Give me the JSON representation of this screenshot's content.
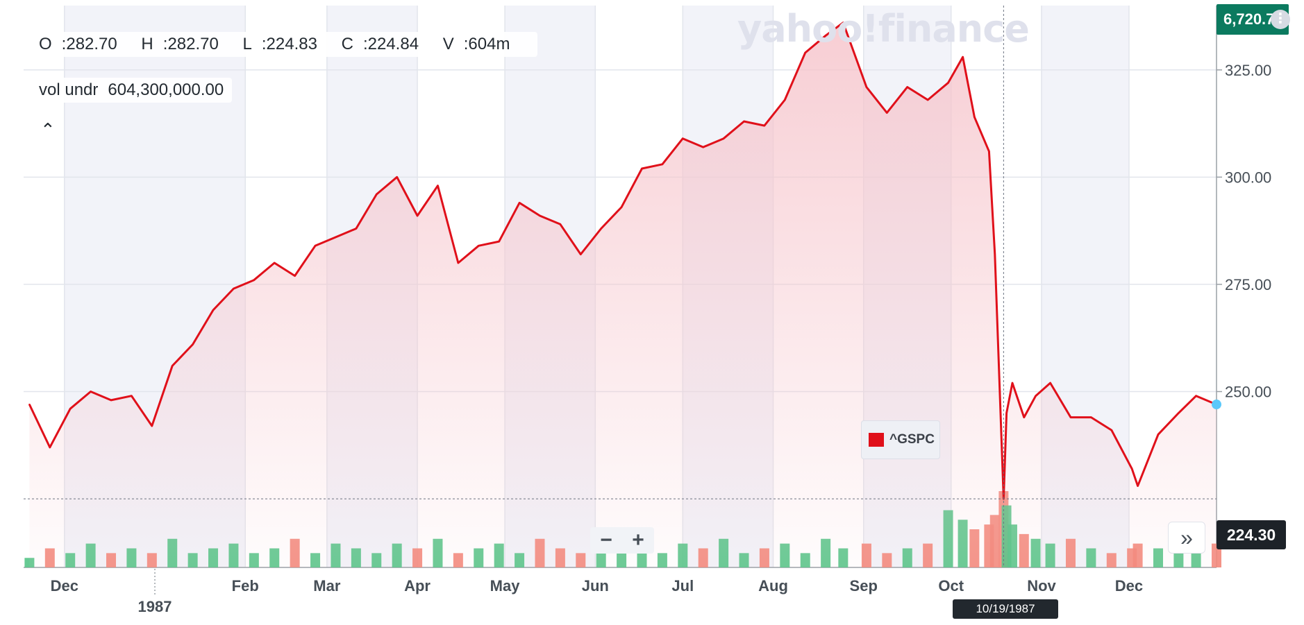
{
  "header": {
    "ohlc": [
      {
        "key": "O",
        "value": "282.70"
      },
      {
        "key": "H",
        "value": "282.70"
      },
      {
        "key": "L",
        "value": "224.83"
      },
      {
        "key": "C",
        "value": "224.84"
      },
      {
        "key": "V",
        "value": "604m"
      }
    ],
    "volume_label": "vol undr",
    "volume_value": "604,300,000.00",
    "collapse_icon": "caret-up-icon",
    "watermark": "yahoo!finance"
  },
  "badges": {
    "top_price": "6,720.7",
    "last_price": "224.30",
    "hover_date": "10/19/1987"
  },
  "legend": {
    "symbol": "^GSPC",
    "color": "#e0101a"
  },
  "controls": {
    "zoom_out": "−",
    "zoom_in": "+",
    "scroll_right": "»"
  },
  "colors": {
    "line": "#e0101a",
    "fill": "#f6c5cc",
    "vol_up": "#55c487",
    "vol_down": "#f3877a",
    "axis_text": "#464e56",
    "grid": "#e2e5ec",
    "shade": "#f2f3f9"
  },
  "chart_data": {
    "type": "line",
    "title": "",
    "series": [
      {
        "name": "^GSPC",
        "x": [
          "1986-11-19",
          "1986-11-26",
          "1986-12-03",
          "1986-12-10",
          "1986-12-17",
          "1986-12-24",
          "1986-12-31",
          "1987-01-07",
          "1987-01-14",
          "1987-01-21",
          "1987-01-28",
          "1987-02-04",
          "1987-02-11",
          "1987-02-18",
          "1987-02-25",
          "1987-03-04",
          "1987-03-11",
          "1987-03-18",
          "1987-03-25",
          "1987-04-01",
          "1987-04-08",
          "1987-04-15",
          "1987-04-22",
          "1987-04-29",
          "1987-05-06",
          "1987-05-13",
          "1987-05-20",
          "1987-05-27",
          "1987-06-03",
          "1987-06-10",
          "1987-06-17",
          "1987-06-24",
          "1987-07-01",
          "1987-07-08",
          "1987-07-15",
          "1987-07-22",
          "1987-07-29",
          "1987-08-05",
          "1987-08-12",
          "1987-08-19",
          "1987-08-25",
          "1987-09-02",
          "1987-09-09",
          "1987-09-16",
          "1987-09-23",
          "1987-09-30",
          "1987-10-05",
          "1987-10-09",
          "1987-10-14",
          "1987-10-16",
          "1987-10-19",
          "1987-10-20",
          "1987-10-22",
          "1987-10-26",
          "1987-10-30",
          "1987-11-04",
          "1987-11-11",
          "1987-11-18",
          "1987-11-25",
          "1987-12-02",
          "1987-12-04",
          "1987-12-11",
          "1987-12-18",
          "1987-12-24",
          "1987-12-31"
        ],
        "values": [
          247,
          237,
          246,
          250,
          248,
          249,
          242,
          256,
          261,
          269,
          274,
          276,
          280,
          277,
          284,
          286,
          288,
          296,
          300,
          291,
          298,
          280,
          284,
          285,
          294,
          291,
          289,
          282,
          288,
          293,
          302,
          303,
          309,
          307,
          309,
          313,
          312,
          318,
          329,
          333,
          336,
          321,
          315,
          321,
          318,
          322,
          328,
          314,
          306,
          282,
          225,
          245,
          252,
          244,
          249,
          252,
          244,
          244,
          241,
          232,
          228,
          240,
          245,
          249,
          247
        ]
      }
    ],
    "volume": {
      "unit": "shares",
      "note": "daily volume bars, relative heights",
      "values": [
        2,
        4,
        3,
        5,
        3,
        4,
        3,
        6,
        3,
        4,
        5,
        3,
        4,
        6,
        3,
        5,
        4,
        3,
        5,
        4,
        6,
        3,
        4,
        5,
        3,
        6,
        4,
        3,
        5,
        4,
        7,
        3,
        5,
        4,
        6,
        3,
        4,
        5,
        3,
        6,
        4,
        5,
        3,
        4,
        5,
        12,
        10,
        8,
        9,
        11,
        16,
        13,
        9,
        7,
        6,
        5,
        6,
        4,
        3,
        4,
        5,
        4,
        3,
        4,
        5
      ]
    },
    "ylim": [
      220,
      340
    ],
    "yticks": [
      "250.00",
      "275.00",
      "300.00",
      "325.00"
    ],
    "yticks_values": [
      250,
      275,
      300,
      325
    ],
    "x_tick_labels": [
      "Dec",
      "Feb",
      "Mar",
      "Apr",
      "May",
      "Jun",
      "Jul",
      "Aug",
      "Sep",
      "Oct",
      "Nov",
      "Dec"
    ],
    "x_tick_dates": [
      "1986-12-01",
      "1987-02-01",
      "1987-03-01",
      "1987-04-01",
      "1987-05-01",
      "1987-06-01",
      "1987-07-01",
      "1987-08-01",
      "1987-09-01",
      "1987-10-01",
      "1987-11-01",
      "1987-12-01"
    ],
    "year_label": "1987",
    "year_date": "1987-01-01",
    "xlim": [
      "1986-11-17",
      "1987-12-31"
    ],
    "hover_date": "1987-10-19",
    "grid": true,
    "legend_position": "center-right"
  }
}
